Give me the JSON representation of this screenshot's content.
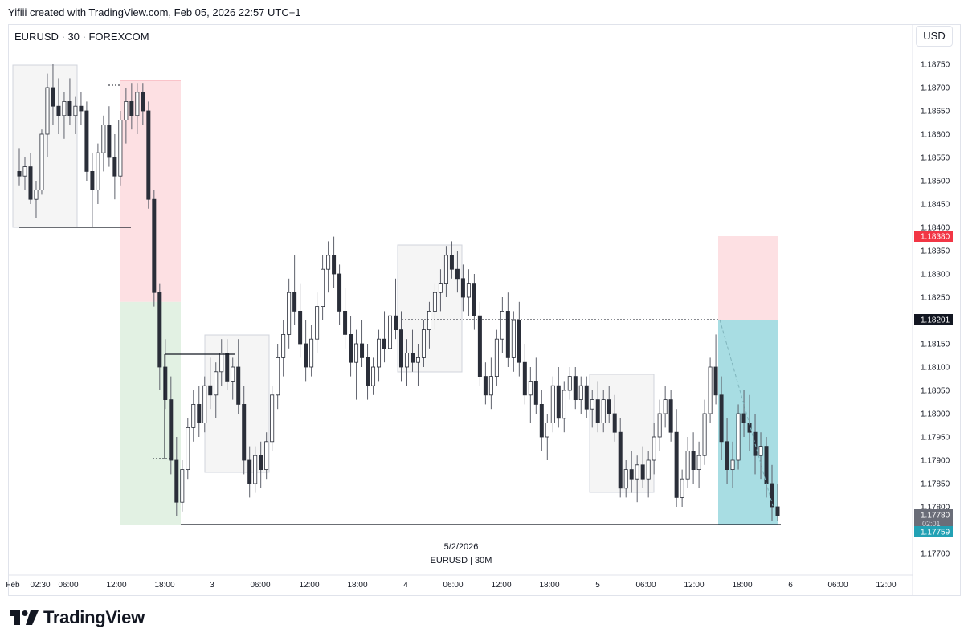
{
  "header": {
    "credit": "Yifiii created with TradingView.com, Feb 05, 2026 22:57 UTC+1",
    "symbol_line": "EURUSD · 30 · FOREXCOM",
    "currency_button": "USD"
  },
  "footer": {
    "brand": "TradingView"
  },
  "colors": {
    "candle_up_fill": "#ffffff",
    "candle_down_fill": "#2a2e39",
    "wick": "#5d606b",
    "stop_zone": "#fde0e3",
    "target_zone": "#e2f1e3",
    "target_zone_right": "#a8dde3",
    "red_tag": "#f23645",
    "black_tag": "#131722",
    "teal_tag": "#22a1b4",
    "grey_tag": "#6a6d78"
  },
  "chart_data": {
    "type": "candlestick",
    "ylim": [
      1.1765,
      1.1879
    ],
    "y_ticks": [
      "1.18750",
      "1.18700",
      "1.18650",
      "1.18600",
      "1.18550",
      "1.18500",
      "1.18450",
      "1.18400",
      "1.18350",
      "1.18300",
      "1.18250",
      "1.18150",
      "1.18100",
      "1.18050",
      "1.18000",
      "1.17950",
      "1.17900",
      "1.17850",
      "1.17800",
      "1.17700"
    ],
    "x_ticks": [
      "Feb",
      "02:30",
      "06:00",
      "12:00",
      "18:00",
      "3",
      "06:00",
      "12:00",
      "18:00",
      "4",
      "06:00",
      "12:00",
      "18:00",
      "5",
      "06:00",
      "12:00",
      "18:00",
      "6",
      "06:00",
      "12:00"
    ],
    "price_tags": [
      {
        "label": "1.18380",
        "kind": "red"
      },
      {
        "label": "1.18201",
        "kind": "black"
      },
      {
        "label": "1.17780",
        "kind": "grey",
        "sub": "02:01"
      },
      {
        "label": "1.17759",
        "kind": "teal"
      }
    ],
    "watermark_date": "5/2/2026",
    "watermark_symbol": "EURUSD | 30M",
    "candles": [
      [
        1.1852,
        1.1857,
        1.1849,
        1.1851
      ],
      [
        1.1851,
        1.1855,
        1.1848,
        1.1853
      ],
      [
        1.1853,
        1.1856,
        1.1845,
        1.1846
      ],
      [
        1.1846,
        1.185,
        1.1842,
        1.1848
      ],
      [
        1.1848,
        1.1861,
        1.1847,
        1.186
      ],
      [
        1.186,
        1.1873,
        1.1855,
        1.187
      ],
      [
        1.187,
        1.1875,
        1.1862,
        1.1866
      ],
      [
        1.1866,
        1.1872,
        1.186,
        1.1864
      ],
      [
        1.1864,
        1.1869,
        1.1859,
        1.1867
      ],
      [
        1.1867,
        1.1872,
        1.1862,
        1.1864
      ],
      [
        1.1864,
        1.1868,
        1.186,
        1.1866
      ],
      [
        1.1866,
        1.1869,
        1.1862,
        1.1865
      ],
      [
        1.1865,
        1.1867,
        1.185,
        1.1852
      ],
      [
        1.1852,
        1.1856,
        1.184,
        1.1848
      ],
      [
        1.1848,
        1.1858,
        1.1845,
        1.1856
      ],
      [
        1.1856,
        1.1864,
        1.1852,
        1.1862
      ],
      [
        1.1862,
        1.1866,
        1.1853,
        1.1855
      ],
      [
        1.1855,
        1.186,
        1.1846,
        1.1851
      ],
      [
        1.1851,
        1.1865,
        1.1849,
        1.1863
      ],
      [
        1.1863,
        1.187,
        1.1858,
        1.1867
      ],
      [
        1.1867,
        1.1871,
        1.1861,
        1.1864
      ],
      [
        1.1864,
        1.1871,
        1.186,
        1.1869
      ],
      [
        1.1869,
        1.1871,
        1.1862,
        1.1865
      ],
      [
        1.1865,
        1.1867,
        1.1844,
        1.1846
      ],
      [
        1.1846,
        1.1848,
        1.1823,
        1.1826
      ],
      [
        1.1826,
        1.1828,
        1.1805,
        1.181
      ],
      [
        1.181,
        1.1816,
        1.1801,
        1.1803
      ],
      [
        1.1803,
        1.1808,
        1.1787,
        1.179
      ],
      [
        1.179,
        1.1795,
        1.1778,
        1.1781
      ],
      [
        1.1781,
        1.179,
        1.1779,
        1.1788
      ],
      [
        1.1788,
        1.1799,
        1.1786,
        1.1797
      ],
      [
        1.1797,
        1.1805,
        1.1794,
        1.1802
      ],
      [
        1.1802,
        1.1806,
        1.1795,
        1.1798
      ],
      [
        1.1798,
        1.1808,
        1.1796,
        1.1806
      ],
      [
        1.1806,
        1.1812,
        1.1801,
        1.1804
      ],
      [
        1.1804,
        1.1811,
        1.1799,
        1.1809
      ],
      [
        1.1809,
        1.1816,
        1.1806,
        1.1813
      ],
      [
        1.1813,
        1.1816,
        1.1805,
        1.1807
      ],
      [
        1.1807,
        1.1812,
        1.1803,
        1.181
      ],
      [
        1.181,
        1.1816,
        1.18,
        1.1802
      ],
      [
        1.1802,
        1.1806,
        1.1787,
        1.179
      ],
      [
        1.179,
        1.1793,
        1.1782,
        1.1785
      ],
      [
        1.1785,
        1.1793,
        1.1783,
        1.1791
      ],
      [
        1.1791,
        1.1794,
        1.1784,
        1.1788
      ],
      [
        1.1788,
        1.1796,
        1.1786,
        1.1794
      ],
      [
        1.1794,
        1.1806,
        1.1792,
        1.1804
      ],
      [
        1.1804,
        1.1815,
        1.1801,
        1.1812
      ],
      [
        1.1812,
        1.182,
        1.1808,
        1.1817
      ],
      [
        1.1817,
        1.1829,
        1.1814,
        1.1826
      ],
      [
        1.1826,
        1.1834,
        1.1819,
        1.1822
      ],
      [
        1.1822,
        1.1828,
        1.1812,
        1.1815
      ],
      [
        1.1815,
        1.182,
        1.1807,
        1.181
      ],
      [
        1.181,
        1.1819,
        1.1808,
        1.1816
      ],
      [
        1.1816,
        1.1826,
        1.1813,
        1.1823
      ],
      [
        1.1823,
        1.1834,
        1.182,
        1.1831
      ],
      [
        1.1831,
        1.1837,
        1.1826,
        1.1834
      ],
      [
        1.1834,
        1.1838,
        1.1827,
        1.183
      ],
      [
        1.183,
        1.1832,
        1.1819,
        1.1822
      ],
      [
        1.1822,
        1.1827,
        1.1814,
        1.1817
      ],
      [
        1.1817,
        1.1821,
        1.1808,
        1.1811
      ],
      [
        1.1811,
        1.1818,
        1.1803,
        1.1815
      ],
      [
        1.1815,
        1.182,
        1.181,
        1.1812
      ],
      [
        1.1812,
        1.1815,
        1.1803,
        1.1806
      ],
      [
        1.1806,
        1.1812,
        1.1804,
        1.181
      ],
      [
        1.181,
        1.1818,
        1.1807,
        1.1816
      ],
      [
        1.1816,
        1.1822,
        1.1811,
        1.1814
      ],
      [
        1.1814,
        1.1824,
        1.181,
        1.1821
      ],
      [
        1.1821,
        1.1829,
        1.1816,
        1.1818
      ],
      [
        1.1818,
        1.1822,
        1.1807,
        1.181
      ],
      [
        1.181,
        1.1816,
        1.1806,
        1.1813
      ],
      [
        1.1813,
        1.1818,
        1.1809,
        1.1811
      ],
      [
        1.1811,
        1.1815,
        1.1806,
        1.1812
      ],
      [
        1.1812,
        1.182,
        1.181,
        1.1818
      ],
      [
        1.1818,
        1.1824,
        1.1814,
        1.1822
      ],
      [
        1.1822,
        1.1828,
        1.1818,
        1.1826
      ],
      [
        1.1826,
        1.1831,
        1.1822,
        1.1828
      ],
      [
        1.1828,
        1.1836,
        1.1825,
        1.1834
      ],
      [
        1.1834,
        1.1837,
        1.1829,
        1.1831
      ],
      [
        1.1831,
        1.1835,
        1.1826,
        1.1829
      ],
      [
        1.1829,
        1.1832,
        1.1822,
        1.1825
      ],
      [
        1.1825,
        1.1831,
        1.1821,
        1.1828
      ],
      [
        1.1828,
        1.183,
        1.1818,
        1.1821
      ],
      [
        1.1821,
        1.1824,
        1.1806,
        1.1808
      ],
      [
        1.1808,
        1.1811,
        1.1802,
        1.1804
      ],
      [
        1.1804,
        1.1812,
        1.1801,
        1.1808
      ],
      [
        1.1808,
        1.1818,
        1.1806,
        1.1816
      ],
      [
        1.1816,
        1.1825,
        1.1813,
        1.1822
      ],
      [
        1.1822,
        1.1826,
        1.181,
        1.1812
      ],
      [
        1.1812,
        1.1822,
        1.1809,
        1.182
      ],
      [
        1.182,
        1.1824,
        1.1808,
        1.1811
      ],
      [
        1.1811,
        1.1815,
        1.1802,
        1.1804
      ],
      [
        1.1804,
        1.181,
        1.1798,
        1.1807
      ],
      [
        1.1807,
        1.1812,
        1.18,
        1.1802
      ],
      [
        1.1802,
        1.1805,
        1.1792,
        1.1795
      ],
      [
        1.1795,
        1.18,
        1.179,
        1.1798
      ],
      [
        1.1798,
        1.1808,
        1.1796,
        1.1806
      ],
      [
        1.1806,
        1.181,
        1.1797,
        1.1799
      ],
      [
        1.1799,
        1.1807,
        1.1796,
        1.1805
      ],
      [
        1.1805,
        1.181,
        1.1803,
        1.1808
      ],
      [
        1.1808,
        1.181,
        1.1801,
        1.1803
      ],
      [
        1.1803,
        1.1808,
        1.18,
        1.1806
      ],
      [
        1.1806,
        1.1808,
        1.1799,
        1.1801
      ],
      [
        1.1801,
        1.1805,
        1.1797,
        1.1803
      ],
      [
        1.1803,
        1.1807,
        1.1796,
        1.1798
      ],
      [
        1.1798,
        1.1805,
        1.1796,
        1.1803
      ],
      [
        1.1803,
        1.1806,
        1.1798,
        1.18
      ],
      [
        1.18,
        1.1804,
        1.1794,
        1.1796
      ],
      [
        1.1796,
        1.1799,
        1.1782,
        1.1784
      ],
      [
        1.1784,
        1.179,
        1.1782,
        1.1788
      ],
      [
        1.1788,
        1.1792,
        1.1783,
        1.1786
      ],
      [
        1.1786,
        1.1791,
        1.1781,
        1.1789
      ],
      [
        1.1789,
        1.1793,
        1.1784,
        1.1786
      ],
      [
        1.1786,
        1.1792,
        1.1782,
        1.179
      ],
      [
        1.179,
        1.1798,
        1.1787,
        1.1795
      ],
      [
        1.1795,
        1.1803,
        1.1792,
        1.18
      ],
      [
        1.18,
        1.1806,
        1.1797,
        1.1803
      ],
      [
        1.1803,
        1.1805,
        1.1794,
        1.1796
      ],
      [
        1.1796,
        1.1801,
        1.178,
        1.1782
      ],
      [
        1.1782,
        1.1788,
        1.178,
        1.1786
      ],
      [
        1.1786,
        1.1795,
        1.1784,
        1.1792
      ],
      [
        1.1792,
        1.1796,
        1.1785,
        1.1788
      ],
      [
        1.1788,
        1.1794,
        1.1784,
        1.1791
      ],
      [
        1.1791,
        1.1803,
        1.1789,
        1.18
      ],
      [
        1.18,
        1.1812,
        1.1798,
        1.181
      ],
      [
        1.181,
        1.1817,
        1.1802,
        1.1804
      ],
      [
        1.1804,
        1.1808,
        1.179,
        1.1794
      ],
      [
        1.1794,
        1.1799,
        1.1785,
        1.1788
      ],
      [
        1.1788,
        1.1794,
        1.1784,
        1.179
      ],
      [
        1.179,
        1.1802,
        1.1788,
        1.18
      ],
      [
        1.18,
        1.1805,
        1.1795,
        1.1798
      ],
      [
        1.1798,
        1.1804,
        1.1792,
        1.1796
      ],
      [
        1.1796,
        1.18,
        1.1787,
        1.1791
      ],
      [
        1.1791,
        1.1796,
        1.1786,
        1.1793
      ],
      [
        1.1793,
        1.1795,
        1.1782,
        1.1785
      ],
      [
        1.1785,
        1.1789,
        1.1777,
        1.178
      ],
      [
        1.178,
        1.1785,
        1.1777,
        1.1778
      ]
    ]
  }
}
